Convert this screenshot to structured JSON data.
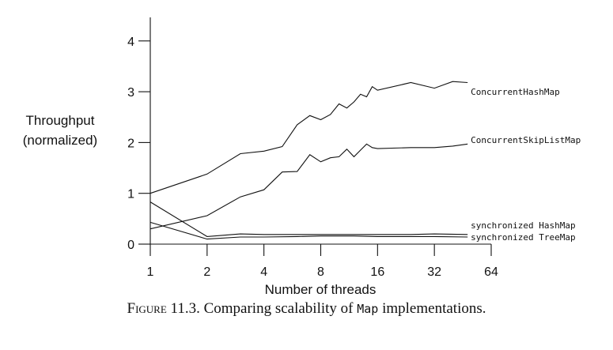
{
  "chart_data": {
    "type": "line",
    "ylabel": [
      "Throughput",
      "(normalized)"
    ],
    "xlabel": "Number of threads",
    "xscale": "log2",
    "xlim": [
      1,
      64
    ],
    "ylim": [
      0,
      4.5
    ],
    "xticks": [
      1,
      2,
      4,
      8,
      16,
      32,
      64
    ],
    "yticks": [
      0,
      1,
      2,
      3,
      4
    ],
    "grid": false,
    "legend": "inline-right",
    "series": [
      {
        "name": "ConcurrentHashMap",
        "x": [
          1,
          2,
          3,
          4,
          5,
          6,
          7,
          8,
          9,
          10,
          11,
          12,
          13,
          14,
          15,
          16,
          24,
          32,
          40,
          48
        ],
        "y": [
          1.0,
          1.38,
          1.78,
          1.83,
          1.92,
          2.35,
          2.53,
          2.45,
          2.55,
          2.76,
          2.68,
          2.8,
          2.95,
          2.9,
          3.1,
          3.03,
          3.18,
          3.07,
          3.2,
          3.18
        ]
      },
      {
        "name": "ConcurrentSkipListMap",
        "x": [
          1,
          2,
          3,
          4,
          5,
          6,
          7,
          8,
          9,
          10,
          11,
          12,
          13,
          14,
          15,
          16,
          24,
          32,
          40,
          48
        ],
        "y": [
          0.3,
          0.56,
          0.93,
          1.07,
          1.42,
          1.43,
          1.76,
          1.62,
          1.7,
          1.72,
          1.87,
          1.72,
          1.85,
          1.97,
          1.9,
          1.88,
          1.9,
          1.9,
          1.93,
          1.97
        ]
      },
      {
        "name": "synchronized HashMap",
        "x": [
          1,
          2,
          3,
          4,
          6,
          8,
          12,
          16,
          24,
          32,
          48
        ],
        "y": [
          0.83,
          0.15,
          0.2,
          0.19,
          0.19,
          0.19,
          0.19,
          0.19,
          0.19,
          0.2,
          0.19
        ]
      },
      {
        "name": "synchronized TreeMap",
        "x": [
          1,
          2,
          3,
          4,
          6,
          8,
          12,
          16,
          24,
          32,
          48
        ],
        "y": [
          0.43,
          0.1,
          0.14,
          0.14,
          0.15,
          0.16,
          0.16,
          0.15,
          0.15,
          0.15,
          0.14
        ]
      }
    ]
  },
  "caption": {
    "figure_word": "Figure",
    "figure_number": "11.3.",
    "before_code": "Comparing scalability of",
    "code": "Map",
    "after_code": "implementations."
  }
}
